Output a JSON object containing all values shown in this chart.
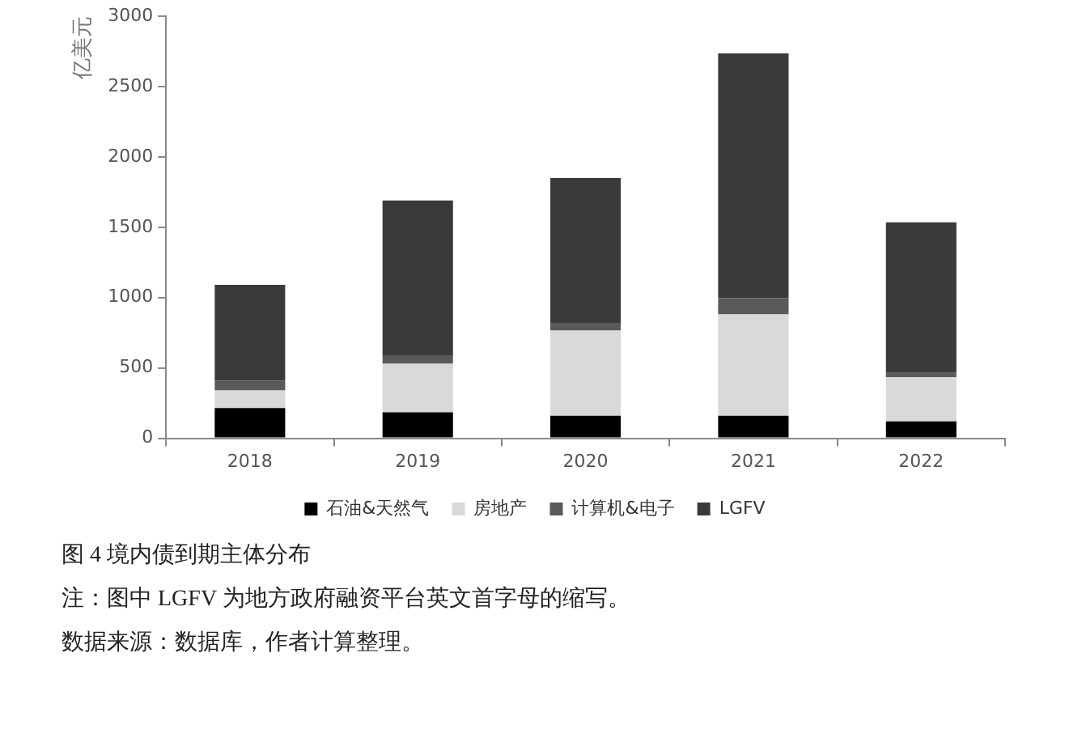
{
  "chart_data": {
    "type": "bar",
    "title": "图 4    境内债到期主体分布",
    "ylabel": "亿美元",
    "categories": [
      "2018",
      "2019",
      "2020",
      "2021",
      "2022"
    ],
    "stacked": true,
    "ylim": [
      0,
      3000
    ],
    "yticks": [
      0,
      500,
      1000,
      1500,
      2000,
      2500,
      3000
    ],
    "grid": false,
    "legend": "bottom",
    "series": [
      {
        "name": "石油&天然气",
        "color": "#000000",
        "values": [
          215,
          185,
          160,
          160,
          120
        ]
      },
      {
        "name": "房地产",
        "color": "#d9d9d9",
        "values": [
          125,
          345,
          605,
          720,
          315
        ]
      },
      {
        "name": "计算机&电子",
        "color": "#595959",
        "values": [
          70,
          60,
          55,
          115,
          30
        ]
      },
      {
        "name": "LGFV",
        "color": "#3a3a3a",
        "values": [
          680,
          1100,
          1030,
          1740,
          1070
        ]
      }
    ],
    "annotations": [
      "注：图中 LGFV 为地方政府融资平台英文首字母的缩写。",
      "数据来源：数据库，作者计算整理。"
    ]
  }
}
